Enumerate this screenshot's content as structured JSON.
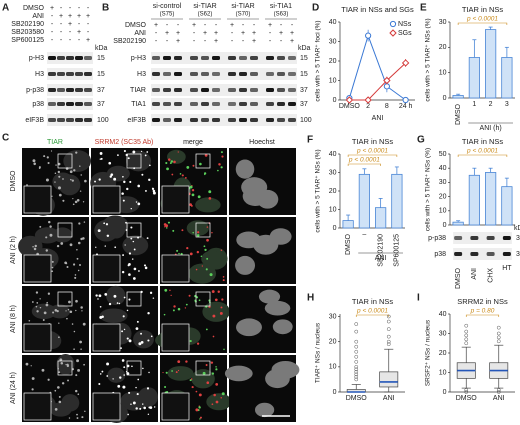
{
  "panel_labels": [
    "A",
    "B",
    "C",
    "D",
    "E",
    "F",
    "G",
    "H",
    "I"
  ],
  "blot_a": {
    "treatments": [
      {
        "name": "DMSO",
        "signs": [
          "+",
          "-",
          "-",
          "-",
          "-"
        ]
      },
      {
        "name": "ANI",
        "signs": [
          "-",
          "+",
          "+",
          "+",
          "+"
        ]
      },
      {
        "name": "SB202190",
        "signs": [
          "-",
          "-",
          "+",
          "-",
          "-"
        ]
      },
      {
        "name": "SB203580",
        "signs": [
          "-",
          "-",
          "-",
          "+",
          "-"
        ]
      },
      {
        "name": "SP600125",
        "signs": [
          "-",
          "-",
          "-",
          "-",
          "+"
        ]
      }
    ],
    "bands": [
      "p-H3",
      "H3",
      "p-p38",
      "p38",
      "eIF3B"
    ],
    "kda": [
      "15",
      "15",
      "37",
      "37",
      "100"
    ],
    "kda_unit": "kDa"
  },
  "blot_b": {
    "groups": [
      {
        "name": "si-control",
        "id": "(S75)"
      },
      {
        "name": "si-TIAR",
        "id": "(S62)"
      },
      {
        "name": "si-TIAR",
        "id": "(S70)"
      },
      {
        "name": "si-TIA1",
        "id": "(S63)"
      }
    ],
    "treatments": [
      {
        "name": "DMSO",
        "signs": [
          "+",
          "-",
          "-",
          "+",
          "-",
          "-",
          "+",
          "-",
          "-",
          "+",
          "-",
          "-"
        ]
      },
      {
        "name": "ANI",
        "signs": [
          "-",
          "+",
          "+",
          "-",
          "+",
          "+",
          "-",
          "+",
          "+",
          "-",
          "+",
          "+"
        ]
      },
      {
        "name": "SB202190",
        "signs": [
          "-",
          "-",
          "+",
          "-",
          "-",
          "+",
          "-",
          "-",
          "+",
          "-",
          "-",
          "+"
        ]
      }
    ],
    "bands": [
      "p-H3",
      "H3",
      "TIAR",
      "TIA1",
      "eIF3B"
    ],
    "kda": [
      "15",
      "15",
      "37",
      "37",
      "100"
    ],
    "kda_unit": "kDa"
  },
  "micrographs": {
    "columns": [
      {
        "label": "TIAR",
        "color": "#2e9a3a"
      },
      {
        "label": "SRRM2 (SC35 Ab)",
        "color": "#c0392b"
      },
      {
        "label": "merge",
        "color": "#222222"
      },
      {
        "label": "Hoechst",
        "color": "#222222"
      }
    ],
    "rows": [
      "DMSO",
      "ANI (2 h)",
      "ANI (8 h)",
      "ANI (24 h)"
    ]
  },
  "blot_g": {
    "bands": [
      "p-p38",
      "p38"
    ],
    "kda": [
      "37",
      "37"
    ],
    "kda_unit": "kDa"
  },
  "chart_data": [
    {
      "type": "line",
      "title": "TIAR in NSs and SGs",
      "xlabel": "ANI",
      "ylabel": "cells with > 5 TIAR⁺ foci (%)",
      "categories": [
        "DMSO",
        "2",
        "8",
        "24 h"
      ],
      "series": [
        {
          "name": "NSs",
          "color": "#3a78d4",
          "marker": "circle",
          "values": [
            1,
            33,
            7,
            0
          ],
          "errors": [
            0.5,
            3,
            3,
            0.5
          ]
        },
        {
          "name": "SGs",
          "color": "#d43a3a",
          "marker": "diamond",
          "values": [
            0,
            0,
            10,
            19
          ],
          "errors": [
            0,
            0,
            2,
            2
          ]
        }
      ],
      "ylim": [
        0,
        40
      ],
      "yticks": [
        0,
        10,
        20,
        30,
        40
      ],
      "legend": "upper right"
    },
    {
      "type": "bar",
      "title": "TIAR in NSs",
      "xlabel": "ANI (h)",
      "ylabel": "cells with > 5 TIAR⁺ NSs (%)",
      "categories": [
        "DMSO",
        "1",
        "2",
        "3"
      ],
      "values": [
        1,
        16,
        27,
        16
      ],
      "errors": [
        0.5,
        7,
        1,
        4
      ],
      "color": "#cfe2f7",
      "edge_color": "#4a86d6",
      "ylim": [
        0,
        30
      ],
      "yticks": [
        0,
        10,
        20,
        30
      ],
      "annotations": [
        "p < 0.0001"
      ],
      "annotation_color": "#c98a1a"
    },
    {
      "type": "bar",
      "title": "TIAR in NSs",
      "xlabel": "ANI",
      "ylabel": "cells with > 5 TIAR⁺ NSs (%)",
      "categories": [
        "DMSO",
        "–",
        "SB202190",
        "SP600125"
      ],
      "values": [
        4,
        29,
        11,
        29
      ],
      "errors": [
        3,
        3,
        5,
        4
      ],
      "color": "#cfe2f7",
      "edge_color": "#4a86d6",
      "ylim": [
        0,
        40
      ],
      "yticks": [
        0,
        10,
        20,
        30,
        40
      ],
      "annotations": [
        "p < 0.0001",
        "p < 0.0001"
      ],
      "annotation_color": "#c98a1a"
    },
    {
      "type": "bar",
      "title": "TIAR in NSs",
      "ylabel": "cells with > 5 TIAR⁺ NSs (%)",
      "categories": [
        "DMSO",
        "ANI",
        "CHX",
        "HT"
      ],
      "values": [
        2,
        35,
        37,
        27
      ],
      "errors": [
        1,
        5,
        3,
        6
      ],
      "color": "#cfe2f7",
      "edge_color": "#4a86d6",
      "ylim": [
        0,
        50
      ],
      "yticks": [
        0,
        10,
        20,
        30,
        40,
        50
      ],
      "annotations": [
        "p < 0.0001"
      ],
      "annotation_color": "#c98a1a"
    },
    {
      "type": "box",
      "title": "TIAR in NSs",
      "ylabel": "TIAR⁺ NSs / nucleus",
      "categories": [
        "DMSO",
        "ANI"
      ],
      "boxes": [
        {
          "whisker_low": 0,
          "q1": 0,
          "median": 0,
          "q3": 1,
          "whisker_high": 3,
          "outliers": [
            5,
            6,
            7,
            8,
            9,
            10,
            12,
            14,
            16,
            18,
            20,
            24,
            27
          ]
        },
        {
          "whisker_low": 0,
          "q1": 2,
          "median": 4,
          "q3": 8,
          "whisker_high": 17,
          "outliers": [
            19,
            20,
            22,
            25,
            28,
            30
          ]
        }
      ],
      "color": "#e6e6e6",
      "median_color": "#2456b8",
      "ylim": [
        0,
        31
      ],
      "yticks": [
        0,
        10,
        20,
        30
      ],
      "annotations": [
        "p < 0.0001"
      ],
      "annotation_color": "#c98a1a"
    },
    {
      "type": "box",
      "title": "SRRM2 in NSs",
      "ylabel": "SRSF2⁺ NSs / nucleus",
      "categories": [
        "DMSO",
        "ANI"
      ],
      "boxes": [
        {
          "whisker_low": 2,
          "q1": 7,
          "median": 11,
          "q3": 15,
          "whisker_high": 23,
          "outliers": [
            0,
            1,
            25,
            27,
            29,
            31,
            34
          ]
        },
        {
          "whisker_low": 2,
          "q1": 7,
          "median": 11,
          "q3": 15,
          "whisker_high": 24,
          "outliers": [
            0,
            1,
            26,
            28,
            30,
            33
          ]
        }
      ],
      "color": "#e6e6e6",
      "median_color": "#2456b8",
      "ylim": [
        0,
        40
      ],
      "yticks": [
        0,
        10,
        20,
        30,
        40
      ],
      "annotations": [
        "p = 0.80"
      ],
      "annotation_color": "#c98a1a"
    }
  ]
}
